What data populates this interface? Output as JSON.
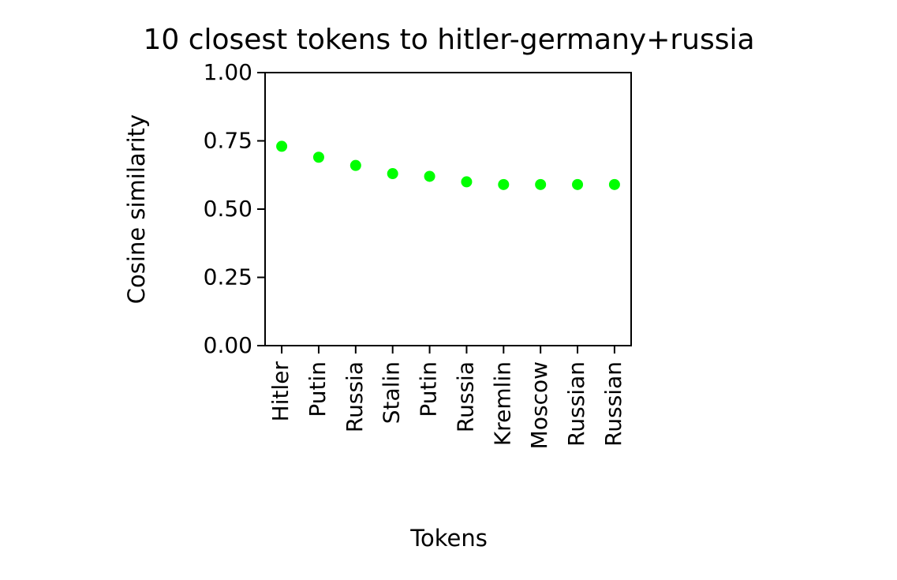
{
  "chart_data": {
    "type": "scatter",
    "title": "10 closest tokens to hitler-germany+russia",
    "x_label": "Tokens",
    "y_label": "Cosine similarity",
    "categories": [
      "Hitler",
      "Putin",
      "Russia",
      "Stalin",
      "Putin",
      "Russia",
      "Kremlin",
      "Moscow",
      "Russian",
      "Russian"
    ],
    "values": [
      0.73,
      0.69,
      0.66,
      0.63,
      0.62,
      0.6,
      0.59,
      0.59,
      0.59,
      0.59
    ],
    "color": "#00ff00",
    "ylim": [
      0,
      1
    ],
    "yticks": [
      {
        "value": 0,
        "label": "0.00"
      },
      {
        "value": 0.25,
        "label": "0.25"
      },
      {
        "value": 0.5,
        "label": "0.50"
      },
      {
        "value": 0.75,
        "label": "0.75"
      },
      {
        "value": 1,
        "label": "1.00"
      }
    ]
  }
}
